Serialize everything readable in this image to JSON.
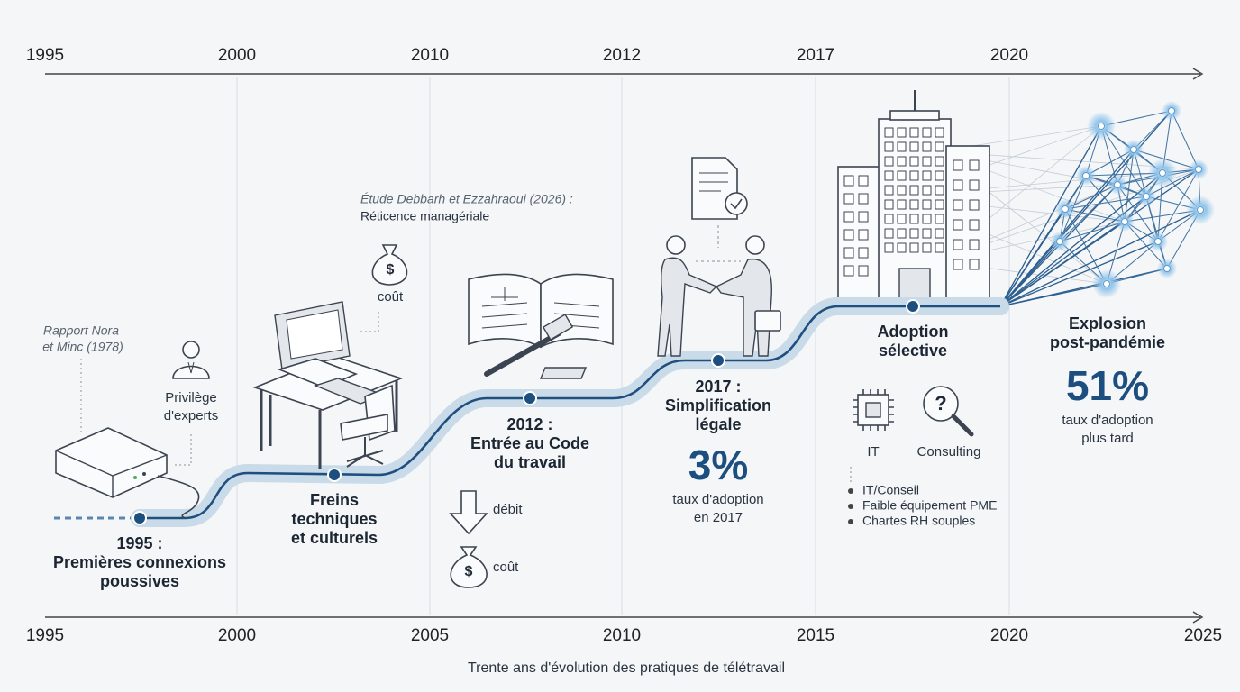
{
  "top_axis": {
    "labels": [
      "1995",
      "2000",
      "2010",
      "2012",
      "2017",
      "2020"
    ]
  },
  "bottom_axis": {
    "labels": [
      "1995",
      "2000",
      "2005",
      "2010",
      "2015",
      "2020",
      "2025"
    ]
  },
  "caption": "Trente ans d'évolution des pratiques de télétravail",
  "stages": [
    {
      "title": [
        "1995 :",
        "Premières connexions",
        "poussives"
      ],
      "source": [
        "Rapport Nora",
        "et Minc (1978)"
      ],
      "note": [
        "Privilège",
        "d'experts"
      ]
    },
    {
      "title": [
        "Freins",
        "techniques",
        "et culturels"
      ],
      "source": [
        "Étude Debbarh et Ezzahraoui (2026) :",
        "Réticence managériale"
      ],
      "note": [
        "coût"
      ]
    },
    {
      "title": [
        "2012 :",
        "Entrée au Code",
        "du travail"
      ],
      "notes": [
        "débit",
        "coût"
      ]
    },
    {
      "title": [
        "2017 :",
        "Simplification",
        "légale"
      ],
      "stat": "3%",
      "stat_label": [
        "taux d'adoption",
        "en 2017"
      ]
    },
    {
      "title": [
        "Adoption",
        "sélective"
      ],
      "icons": [
        "IT",
        "Consulting"
      ],
      "bullets": [
        "IT/Conseil",
        "Faible équipement PME",
        "Chartes RH souples"
      ]
    },
    {
      "title": [
        "Explosion",
        "post-pandémie"
      ],
      "stat": "51%",
      "stat_label": [
        "taux d'adoption",
        "plus tard"
      ]
    }
  ]
}
